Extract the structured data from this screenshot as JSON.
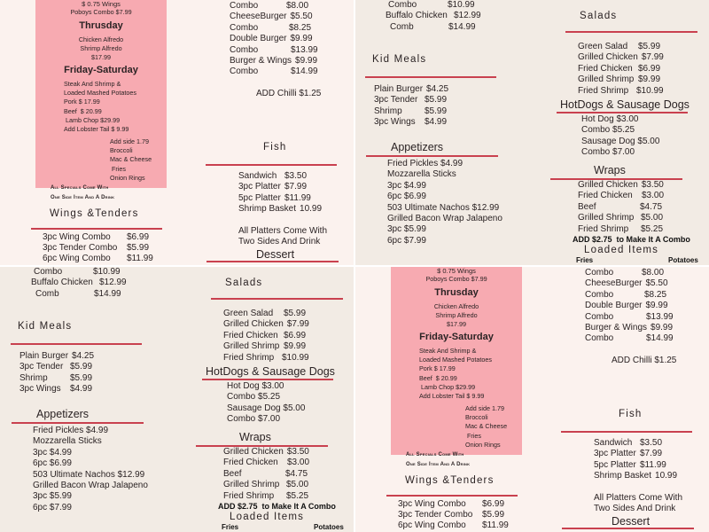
{
  "specials": {
    "wings_line": "$ 0.75 Wings",
    "poboys": "Poboys Combo $7.99",
    "thursday": {
      "title": "Thrusday",
      "items": [
        "Chicken Alfredo",
        "Shrimp Alfredo",
        "$17.99"
      ]
    },
    "friday": {
      "title": "Friday-Saturday",
      "items": [
        "Steak And Shrimp &",
        "Loaded Mashed Potatoes",
        "Pork $ 17.99",
        "Beef  $ 20.99",
        " Lamb Chop $29.99",
        "Add Lobster Tail $ 9.99"
      ]
    },
    "sides": [
      "Add side 1.79",
      "Broccoli",
      "Mac & Cheese",
      " Fries",
      "Onion Rings"
    ],
    "note": [
      "All Specials Come With",
      "One Side Item And A Drink"
    ]
  },
  "wings_tenders": {
    "title": "Wings &Tenders",
    "items": [
      [
        "3pc Wing Combo",
        "$6.99"
      ],
      [
        "3pc Tender  Combo",
        "$5.99"
      ],
      [
        "6pc Wing  Combo",
        "$11.99"
      ]
    ]
  },
  "burgers": {
    "items": [
      [
        "Combo",
        "$8.00"
      ],
      [
        "CheeseBurger",
        "$5.50"
      ],
      [
        "Combo",
        "$8.25"
      ],
      [
        "Double Burger",
        "$9.99"
      ],
      [
        "Combo",
        "$13.99"
      ],
      [
        "Burger & Wings",
        "$9.99"
      ],
      [
        "Combo",
        "$14.99"
      ]
    ],
    "addon": "ADD Chilli $1.25"
  },
  "fish": {
    "title": "Fish",
    "items": [
      [
        "Sandwich",
        "$3.50"
      ],
      [
        "3pc Platter",
        "$7.99"
      ],
      [
        "5pc Platter",
        "$11.99"
      ],
      [
        "Shrimp Basket",
        "10.99"
      ]
    ],
    "note": [
      "All Platters Come With",
      "Two Sides And Drink"
    ]
  },
  "dessert": {
    "title": "Dessert"
  },
  "chicken": {
    "items": [
      [
        "Combo",
        "$10.99"
      ],
      [
        "Buffalo Chicken",
        "$12.99"
      ],
      [
        "Comb",
        "$14.99"
      ]
    ]
  },
  "kid_meals": {
    "title": "Kid Meals",
    "items": [
      [
        "Plain Burger",
        "$4.25"
      ],
      [
        "3pc Tender",
        "$5.99"
      ],
      [
        "Shrimp",
        "$5.99"
      ],
      [
        "3pc Wings",
        "$4.99"
      ]
    ]
  },
  "appetizers": {
    "title": "Appetizers",
    "items": [
      "Fried Pickles $4.99",
      "Mozzarella Sticks",
      "3pc $4.99",
      "6pc $6.99",
      "503 Ultimate Nachos $12.99",
      "Grilled Bacon Wrap Jalapeno",
      "3pc $5.99",
      "6pc $7.99"
    ]
  },
  "salads": {
    "title": "Salads",
    "items": [
      [
        "Green Salad",
        "$5.99"
      ],
      [
        "Grilled Chicken",
        "$7.99"
      ],
      [
        "Fried Chicken",
        "$6.99"
      ],
      [
        "Grilled Shrimp",
        "$9.99"
      ],
      [
        "Fried Shrimp",
        "$10.99"
      ]
    ]
  },
  "hotdogs": {
    "title": "HotDogs & Sausage Dogs",
    "items": [
      "Hot Dog $3.00",
      "Combo $5.25",
      "Sausage Dog $5.00",
      "Combo $7.00"
    ]
  },
  "wraps": {
    "title": "Wraps",
    "items": [
      [
        "Grilled Chicken",
        "$3.50"
      ],
      [
        "Fried Chicken",
        "$3.00"
      ],
      [
        "Beef",
        "$4.75"
      ],
      [
        "Grilled Shrimp",
        "$5.00"
      ],
      [
        "Fried Shrimp",
        "$5.25"
      ]
    ],
    "addon": "ADD $2.75  to Make It A Combo"
  },
  "loaded_items": {
    "title": "Loaded Items",
    "items": [
      "Fries",
      "Potatoes"
    ]
  },
  "colors": {
    "pink_box": "#f7aab1",
    "divider": "#c9414f",
    "bg_left": "#fbf2ee",
    "bg_right": "#f2ebe4"
  }
}
